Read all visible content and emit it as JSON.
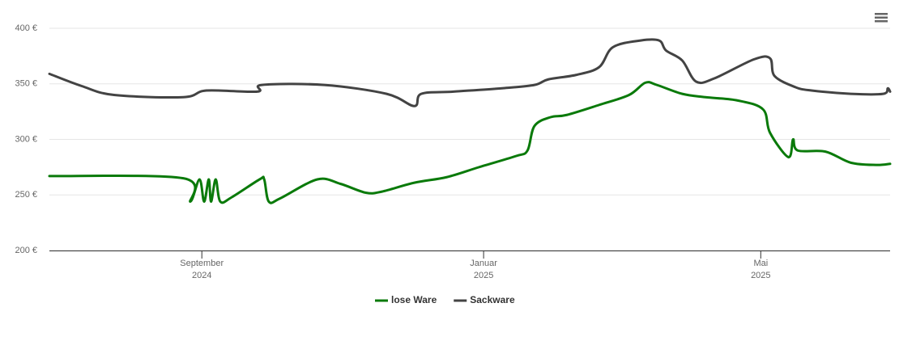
{
  "chart_data": {
    "type": "line",
    "legend": "bottom",
    "grid": true,
    "xlim": [
      "2024-06-27",
      "2025-06-26"
    ],
    "xticks": [
      {
        "value": "2024-09-01",
        "label": [
          "September",
          "2024"
        ]
      },
      {
        "value": "2025-01-01",
        "label": [
          "Januar",
          "2025"
        ]
      },
      {
        "value": "2025-05-01",
        "label": [
          "Mai",
          "2025"
        ]
      }
    ],
    "ylim": [
      200,
      400
    ],
    "yticks": [
      {
        "value": 200,
        "label": "200 €"
      },
      {
        "value": 250,
        "label": "250 €"
      },
      {
        "value": 300,
        "label": "300 €"
      },
      {
        "value": 350,
        "label": "350 €"
      },
      {
        "value": 400,
        "label": "400 €"
      }
    ],
    "series": [
      {
        "name": "lose Ware",
        "color": "#0a7a0a",
        "x": [
          "2024-06-27",
          "2024-08-24",
          "2024-08-27",
          "2024-08-31",
          "2024-09-02",
          "2024-09-04",
          "2024-09-05",
          "2024-09-07",
          "2024-09-09",
          "2024-09-14",
          "2024-09-26",
          "2024-09-28",
          "2024-09-30",
          "2024-10-05",
          "2024-10-21",
          "2024-10-31",
          "2024-11-11",
          "2024-11-18",
          "2024-12-02",
          "2024-12-16",
          "2024-12-30",
          "2025-01-15",
          "2025-01-20",
          "2025-01-23",
          "2025-01-30",
          "2025-02-06",
          "2025-02-20",
          "2025-03-05",
          "2025-03-12",
          "2025-03-17",
          "2025-03-28",
          "2025-04-07",
          "2025-04-21",
          "2025-05-02",
          "2025-05-05",
          "2025-05-13",
          "2025-05-15",
          "2025-05-17",
          "2025-05-29",
          "2025-06-09",
          "2025-06-20",
          "2025-06-26"
        ],
        "values": [
          267,
          265,
          244,
          264,
          244,
          264,
          244,
          264,
          244,
          248,
          264,
          264,
          244,
          247,
          264,
          260,
          252,
          253,
          261,
          266,
          275,
          285,
          290,
          312,
          320,
          322,
          331,
          340,
          351,
          349,
          341,
          338,
          335,
          327,
          306,
          284,
          300,
          290,
          289,
          279,
          277,
          278
        ]
      },
      {
        "name": "Sackware",
        "color": "#434343",
        "x": [
          "2024-06-27",
          "2024-07-11",
          "2024-07-25",
          "2024-08-24",
          "2024-09-03",
          "2024-09-25",
          "2024-09-27",
          "2024-10-24",
          "2024-11-20",
          "2024-12-02",
          "2024-12-05",
          "2024-12-19",
          "2025-01-09",
          "2025-01-23",
          "2025-01-29",
          "2025-02-10",
          "2025-02-20",
          "2025-02-26",
          "2025-03-10",
          "2025-03-18",
          "2025-03-21",
          "2025-03-28",
          "2025-04-03",
          "2025-04-11",
          "2025-04-28",
          "2025-05-05",
          "2025-05-07",
          "2025-05-16",
          "2025-05-23",
          "2025-06-09",
          "2025-06-23",
          "2025-06-25",
          "2025-06-26"
        ],
        "values": [
          359,
          348,
          340,
          338,
          344,
          343,
          349,
          349,
          341,
          330,
          341,
          343,
          346,
          349,
          354,
          358,
          365,
          383,
          389,
          389,
          380,
          371,
          352,
          355,
          372,
          373,
          357,
          347,
          344,
          341,
          341,
          346,
          343
        ]
      }
    ]
  }
}
